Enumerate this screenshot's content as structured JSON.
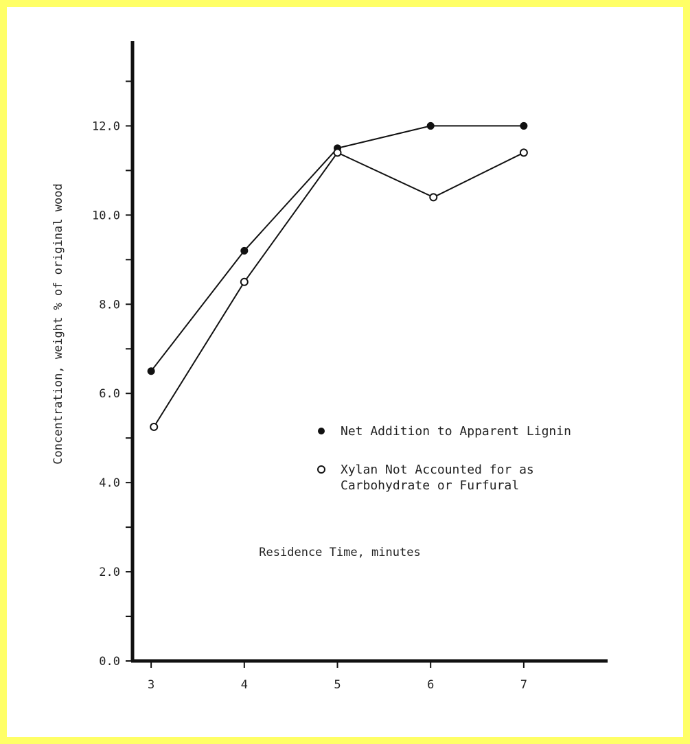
{
  "colors": {
    "border": "#ffff66",
    "ink": "#111111",
    "paper": "#ffffff"
  },
  "chart_data": {
    "type": "line",
    "xlabel": "Residence Time, minutes",
    "ylabel": "Concentration, weight % of original wood",
    "x_ticks": [
      "3",
      "4",
      "5",
      "6",
      "7"
    ],
    "y_ticks": [
      "0.0",
      "2.0",
      "4.0",
      "6.0",
      "8.0",
      "10.0",
      "12.0"
    ],
    "xlim": [
      2.8,
      7.9
    ],
    "ylim": [
      0.0,
      13.9
    ],
    "y_minor_step": 1.0,
    "grid": false,
    "legend_position": "right-middle",
    "series": [
      {
        "name": "Net Addition to Apparent Lignin",
        "marker": "filled-circle",
        "x": [
          3,
          4,
          5,
          6,
          7
        ],
        "y": [
          6.5,
          9.2,
          11.5,
          12.0,
          12.0
        ]
      },
      {
        "name": "Xylan Not Accounted for as Carbohydrate or Furfural",
        "name_lines": [
          "Xylan Not Accounted for as",
          "Carbohydrate or Furfural"
        ],
        "marker": "open-circle",
        "x": [
          3.03,
          4,
          5,
          6.03,
          7
        ],
        "y": [
          5.25,
          8.5,
          11.4,
          10.4,
          11.4
        ]
      }
    ]
  }
}
